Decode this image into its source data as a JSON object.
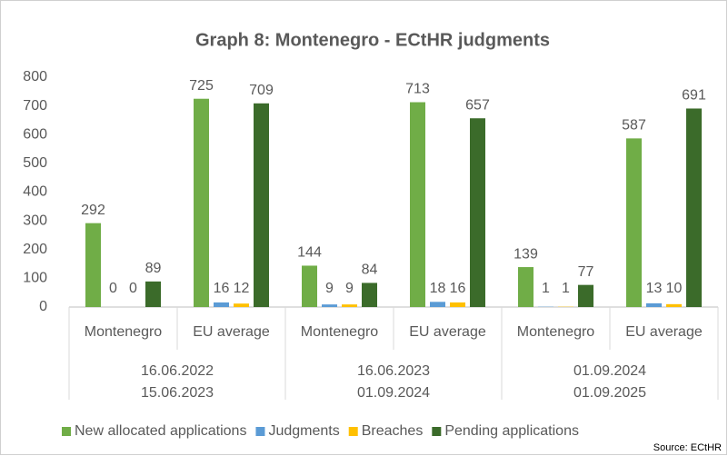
{
  "chart_data": {
    "type": "bar",
    "title": "Graph 8: Montenegro - ECtHR judgments",
    "categories": [
      "Montenegro",
      "EU average",
      "Montenegro",
      "EU average",
      "Montenegro",
      "EU average"
    ],
    "group_labels": [
      [
        "16.06.2022",
        "15.06.2023"
      ],
      [
        "16.06.2023",
        "01.09.2024"
      ],
      [
        "01.09.2024",
        "01.09.2025"
      ]
    ],
    "series": [
      {
        "name": "New allocated applications",
        "color": "#70ad47",
        "values": [
          292,
          725,
          144,
          713,
          139,
          587
        ]
      },
      {
        "name": "Judgments",
        "color": "#5b9bd5",
        "values": [
          0,
          16,
          9,
          18,
          1,
          13
        ]
      },
      {
        "name": "Breaches",
        "color": "#ffc000",
        "values": [
          0,
          12,
          9,
          16,
          1,
          10
        ]
      },
      {
        "name": "Pending applications",
        "color": "#3b6b2a",
        "values": [
          89,
          709,
          84,
          657,
          77,
          691
        ]
      }
    ],
    "ylim": [
      0,
      800
    ],
    "yticks": [
      0,
      100,
      200,
      300,
      400,
      500,
      600,
      700,
      800
    ],
    "grid": false,
    "legend": "bottom",
    "source": "Source: ECtHR"
  }
}
